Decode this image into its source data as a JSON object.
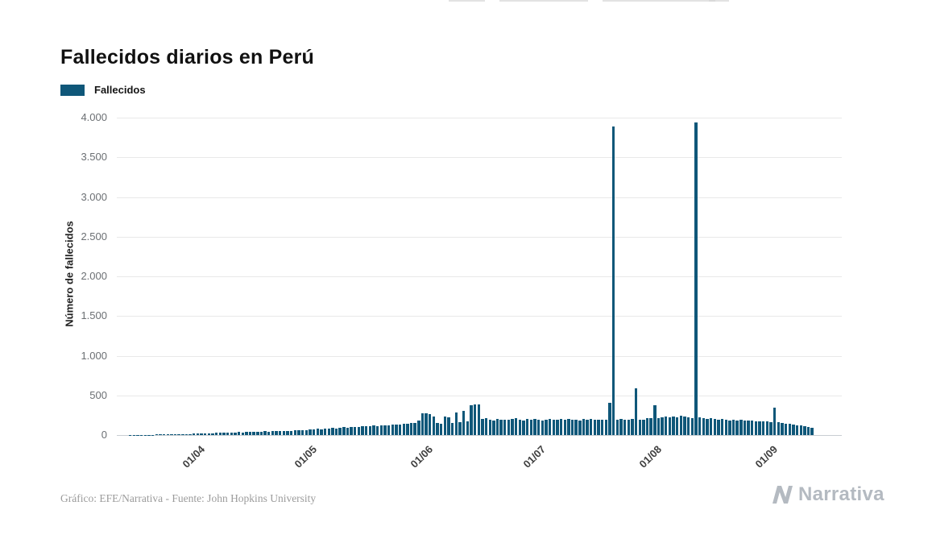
{
  "header": {
    "title": "Fallecidos diarios en Perú"
  },
  "legend": {
    "label": "Fallecidos"
  },
  "footer": {
    "note": "Gráfico: EFE/Narrativa - Fuente: John Hopkins University",
    "brand": "Narrativa"
  },
  "colors": {
    "bar": "#0f5779",
    "grid": "#e9e9e9",
    "zero_line": "#c9ced2",
    "title_text": "#111111",
    "ytick_text": "#6b6f73",
    "xtick_text": "#3f3f3f",
    "footer_text": "#9b9b9b",
    "brand": "#b4bac1"
  },
  "chart_data": {
    "type": "bar",
    "title": "Fallecidos diarios en Perú",
    "ylabel": "Número de fallecidos",
    "xlabel": "",
    "ylim": [
      0,
      4000
    ],
    "yticks": [
      0,
      500,
      1000,
      1500,
      2000,
      2500,
      3000,
      3500,
      4000
    ],
    "ytick_labels": [
      "0",
      "500",
      "1.000",
      "1.500",
      "2.000",
      "2.500",
      "3.000",
      "3.500",
      "4.000"
    ],
    "grid": "horizontal",
    "legend": [
      "Fallecidos"
    ],
    "legend_position": "top-left",
    "series_name": "Fallecidos",
    "x_unit": "day",
    "x_tick_labels": [
      "01/04",
      "01/05",
      "01/06",
      "01/07",
      "01/08",
      "01/09"
    ],
    "x_tick_day_index": [
      16,
      46,
      77,
      107,
      138,
      169
    ],
    "values": [
      2,
      2,
      3,
      3,
      4,
      5,
      5,
      6,
      7,
      8,
      9,
      10,
      11,
      12,
      13,
      14,
      15,
      17,
      19,
      21,
      23,
      20,
      25,
      27,
      29,
      31,
      28,
      33,
      35,
      37,
      34,
      39,
      41,
      43,
      40,
      45,
      47,
      44,
      49,
      51,
      48,
      53,
      55,
      52,
      57,
      60,
      63,
      66,
      70,
      74,
      78,
      72,
      82,
      86,
      90,
      84,
      94,
      98,
      92,
      102,
      106,
      100,
      110,
      114,
      108,
      118,
      112,
      122,
      126,
      120,
      130,
      134,
      128,
      138,
      144,
      150,
      155,
      180,
      270,
      275,
      268,
      230,
      150,
      140,
      230,
      220,
      150,
      280,
      160,
      300,
      170,
      380,
      385,
      390,
      200,
      210,
      195,
      185,
      205,
      198,
      192,
      188,
      202,
      210,
      196,
      186,
      200,
      195,
      200,
      192,
      186,
      198,
      204,
      196,
      188,
      200,
      195,
      205,
      198,
      190,
      186,
      200,
      196,
      204,
      198,
      192,
      188,
      196,
      410,
      3890,
      195,
      200,
      188,
      196,
      204,
      590,
      198,
      192,
      210,
      218,
      380,
      215,
      225,
      230,
      222,
      235,
      228,
      240,
      232,
      224,
      218,
      3935,
      228,
      212,
      206,
      216,
      202,
      196,
      208,
      192,
      186,
      196,
      182,
      192,
      186,
      178,
      182,
      172,
      176,
      168,
      172,
      164,
      350,
      158,
      152,
      146,
      142,
      132,
      126,
      120,
      112,
      102,
      96
    ]
  }
}
